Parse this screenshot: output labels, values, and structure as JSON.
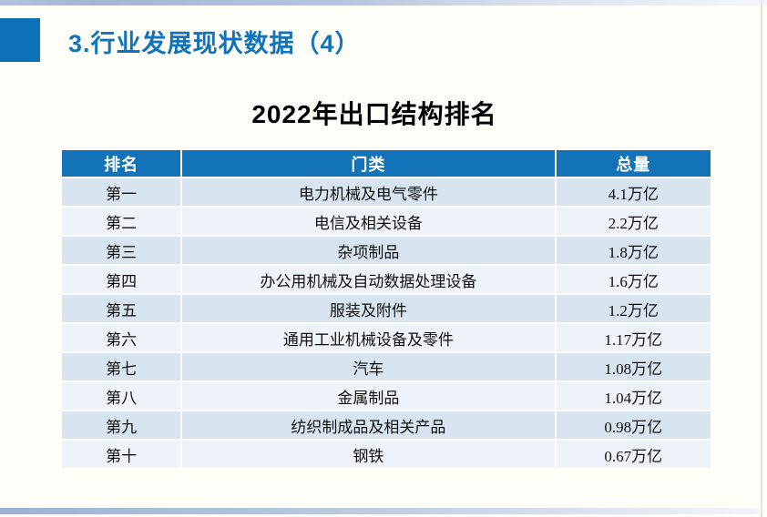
{
  "slide": {
    "title": "3.行业发展现状数据（4）",
    "subtitle": "2022年出口结构排名"
  },
  "table": {
    "columns": [
      "排名",
      "门类",
      "总量"
    ],
    "rows": [
      {
        "rank": "第一",
        "category": "电力机械及电气零件",
        "total": "4.1万亿"
      },
      {
        "rank": "第二",
        "category": "电信及相关设备",
        "total": "2.2万亿"
      },
      {
        "rank": "第三",
        "category": "杂项制品",
        "total": "1.8万亿"
      },
      {
        "rank": "第四",
        "category": "办公用机械及自动数据处理设备",
        "total": "1.6万亿"
      },
      {
        "rank": "第五",
        "category": "服装及附件",
        "total": "1.2万亿"
      },
      {
        "rank": "第六",
        "category": "通用工业机械设备及零件",
        "total": "1.17万亿"
      },
      {
        "rank": "第七",
        "category": "汽车",
        "total": "1.08万亿"
      },
      {
        "rank": "第八",
        "category": "金属制品",
        "total": "1.04万亿"
      },
      {
        "rank": "第九",
        "category": "纺织制成品及相关产品",
        "total": "0.98万亿"
      },
      {
        "rank": "第十",
        "category": "钢铁",
        "total": "0.67万亿"
      }
    ]
  },
  "colors": {
    "accent_blue": "#0f72b8",
    "title_text_blue": "#1173ba",
    "table_header_bg": "#1372b8",
    "row_band_dark": "#d9e4f1",
    "row_band_light": "#eef2f9",
    "edge_gradient": "#a5b5d6"
  }
}
